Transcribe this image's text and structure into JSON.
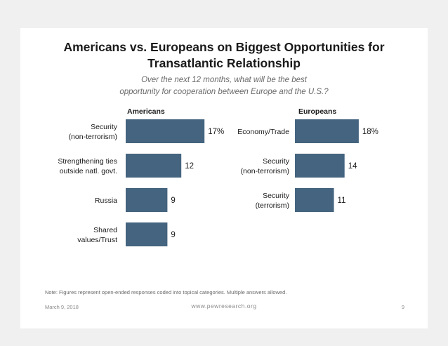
{
  "header": {
    "title_line1": "Americans vs. Europeans on Biggest Opportunities for",
    "title_line2": "Transatlantic Relationship",
    "subtitle_line1": "Over the next 12 months, what will be the best",
    "subtitle_line2": "opportunity for cooperation between Europe and the U.S.?"
  },
  "chart_data": [
    {
      "type": "bar",
      "orientation": "horizontal",
      "title": "Americans",
      "categories": [
        [
          "Security",
          "(non-terrorism)"
        ],
        [
          "Strengthening ties",
          "outside natl. govt."
        ],
        [
          "Russia"
        ],
        [
          "Shared",
          "values/Trust"
        ]
      ],
      "values": [
        17,
        12,
        9,
        9
      ],
      "value_labels": [
        "17%",
        "12",
        "9",
        "9"
      ],
      "color": "#446480"
    },
    {
      "type": "bar",
      "orientation": "horizontal",
      "title": "Europeans",
      "categories": [
        [
          "Economy/Trade"
        ],
        [
          "Security",
          "(non-terrorism)"
        ],
        [
          "Security",
          "(terrorism)"
        ]
      ],
      "values": [
        18,
        14,
        11
      ],
      "value_labels": [
        "18%",
        "14",
        "11"
      ],
      "color": "#446480"
    }
  ],
  "footer": {
    "note": "Note: Figures represent open-ended responses coded into topical categories. Multiple answers allowed.",
    "date": "March 9, 2018",
    "url": "www.pewresearch.org",
    "page": "9"
  }
}
